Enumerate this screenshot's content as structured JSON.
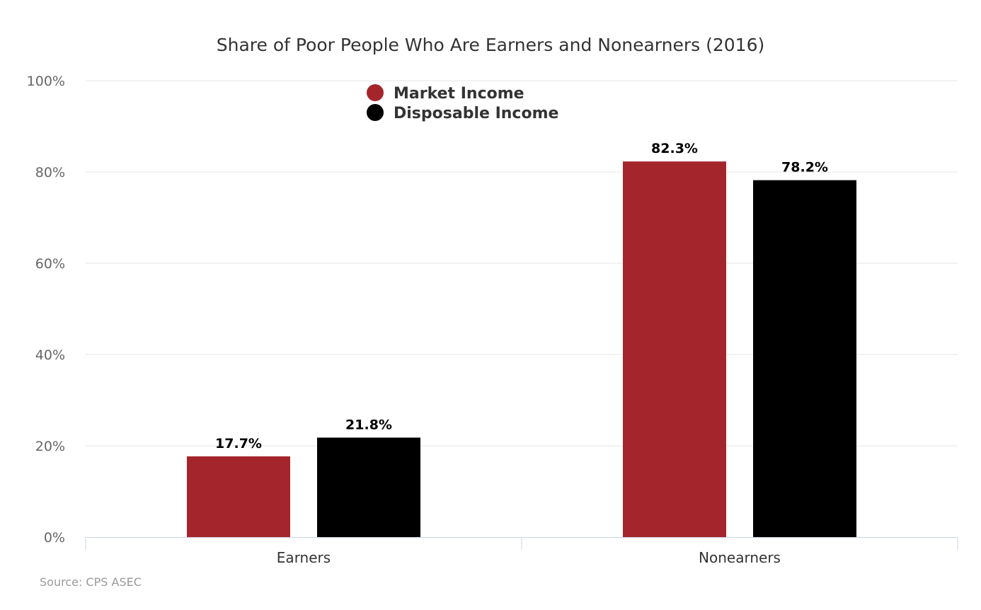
{
  "chart_data": {
    "type": "bar",
    "title": "Share of Poor People Who Are Earners and Nonearners (2016)",
    "categories": [
      "Earners",
      "Nonearners"
    ],
    "series": [
      {
        "name": "Market Income",
        "color": "#a4262c",
        "values": [
          17.7,
          82.3
        ],
        "labels": [
          "17.7%",
          "82.3%"
        ]
      },
      {
        "name": "Disposable Income",
        "color": "#000000",
        "values": [
          21.8,
          78.2
        ],
        "labels": [
          "21.8%",
          "78.2%"
        ]
      }
    ],
    "ylim": [
      0,
      100
    ],
    "yticks": [
      0,
      20,
      40,
      60,
      80,
      100
    ],
    "ytick_labels": [
      "0%",
      "20%",
      "40%",
      "60%",
      "80%",
      "100%"
    ],
    "grid": true,
    "legend_position": "top-center",
    "source": "Source: CPS ASEC"
  }
}
